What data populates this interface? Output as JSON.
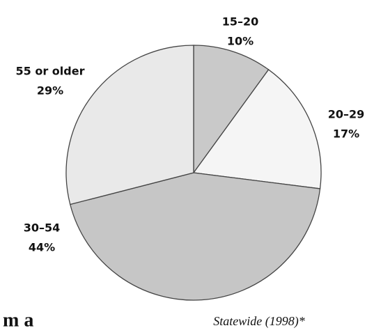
{
  "chart_data": {
    "type": "pie",
    "caption": "Statewide (1998)*",
    "fragment": "m a",
    "categories": [
      "15–20",
      "20–29",
      "30–54",
      "55 or older"
    ],
    "values": [
      10,
      17,
      44,
      29
    ],
    "value_labels": [
      "10%",
      "17%",
      "44%",
      "29%"
    ],
    "colors": [
      "#c9c9c9",
      "#f5f5f5",
      "#c6c6c6",
      "#e9e9e9"
    ],
    "start_angle": 0,
    "direction": "clockwise"
  }
}
